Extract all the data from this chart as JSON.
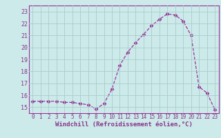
{
  "x": [
    0,
    1,
    2,
    3,
    4,
    5,
    6,
    7,
    8,
    9,
    10,
    11,
    12,
    13,
    14,
    15,
    16,
    17,
    18,
    19,
    20,
    21,
    22,
    23
  ],
  "y": [
    15.5,
    15.5,
    15.5,
    15.5,
    15.4,
    15.4,
    15.3,
    15.2,
    14.85,
    15.3,
    16.5,
    18.5,
    19.6,
    20.4,
    21.1,
    21.8,
    22.35,
    22.8,
    22.7,
    22.2,
    21.0,
    16.7,
    16.2,
    14.8
  ],
  "line_color": "#993399",
  "marker": "D",
  "marker_size": 2.5,
  "xlabel": "Windchill (Refroidissement éolien,°C)",
  "ytick_labels": [
    "15",
    "16",
    "17",
    "18",
    "19",
    "20",
    "21",
    "22",
    "23"
  ],
  "ytick_vals": [
    15,
    16,
    17,
    18,
    19,
    20,
    21,
    22,
    23
  ],
  "xtick_labels": [
    "0",
    "1",
    "2",
    "3",
    "4",
    "5",
    "6",
    "7",
    "8",
    "9",
    "10",
    "11",
    "12",
    "13",
    "14",
    "15",
    "16",
    "17",
    "18",
    "19",
    "20",
    "21",
    "22",
    "23"
  ],
  "xlim": [
    -0.5,
    23.5
  ],
  "ylim": [
    14.5,
    23.5
  ],
  "bg_color": "#cceaea",
  "grid_color": "#aacccc",
  "label_color": "#883388",
  "xlabel_fontsize": 6.5,
  "xtick_fontsize": 5.5,
  "ytick_fontsize": 6
}
